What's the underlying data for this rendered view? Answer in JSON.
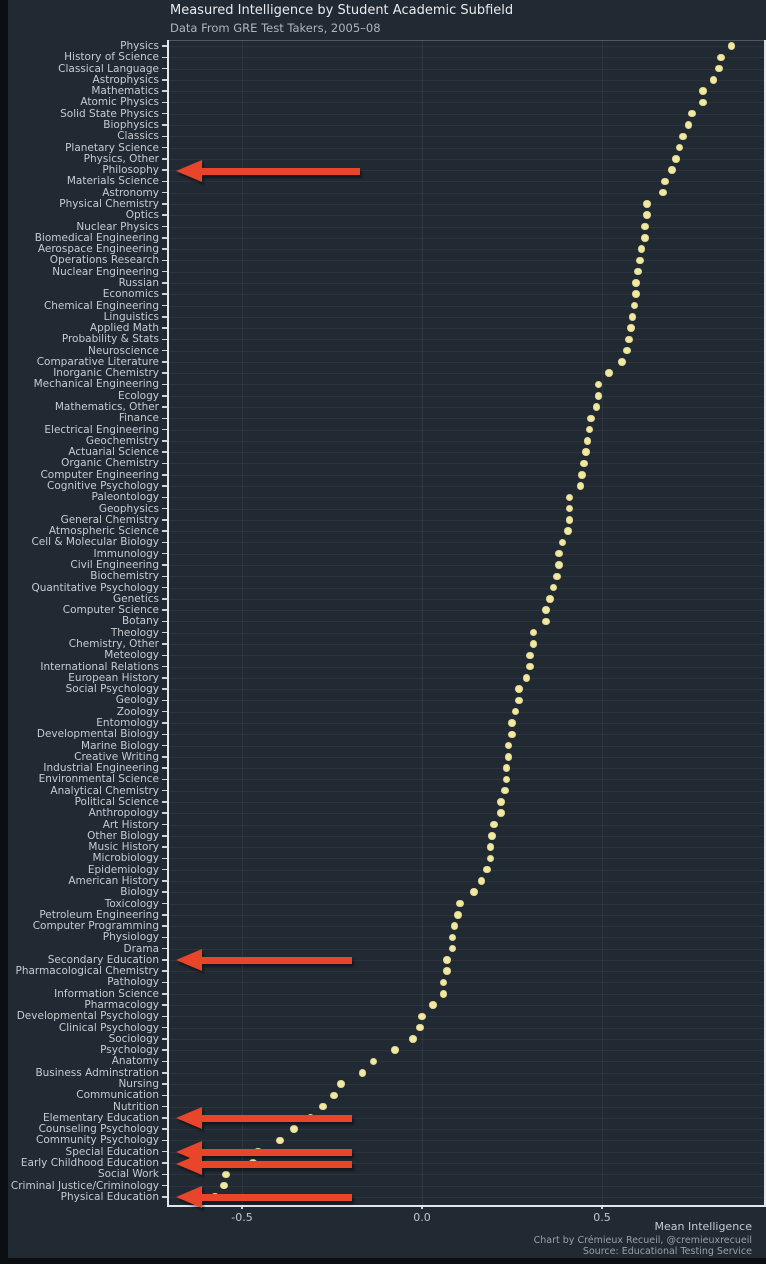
{
  "title": "Measured Intelligence by Student Academic Subfield",
  "subtitle": "Data From GRE Test Takers, 2005–08",
  "footer": {
    "xlabel": "Mean Intelligence",
    "credit": "Chart by Crémieux Recueil, @cremieuxrecueil",
    "source": "Source: Educational Testing Service"
  },
  "colors": {
    "background": "#212932",
    "dot": "#f2e9a0",
    "arrow": "#e8452b",
    "label_text": "#c7ccd1",
    "title_text": "#e9ebee",
    "axis": "#e3e7ea"
  },
  "chart_data": {
    "type": "scatter",
    "title": "Measured Intelligence by Student Academic Subfield",
    "subtitle": "Data From GRE Test Takers, 2005–08",
    "xlabel": "Mean Intelligence",
    "ylabel": "",
    "xlim": [
      -0.71,
      0.95
    ],
    "xticks": [
      -0.5,
      0.0,
      0.5
    ],
    "grid": true,
    "legend": false,
    "categories": [
      "Physics",
      "History of Science",
      "Classical Language",
      "Astrophysics",
      "Mathematics",
      "Atomic Physics",
      "Solid State Physics",
      "Biophysics",
      "Classics",
      "Planetary Science",
      "Physics, Other",
      "Philosophy",
      "Materials Science",
      "Astronomy",
      "Physical Chemistry",
      "Optics",
      "Nuclear Physics",
      "Biomedical Engineering",
      "Aerospace Engineering",
      "Operations Research",
      "Nuclear Engineering",
      "Russian",
      "Economics",
      "Chemical Engineering",
      "Linguistics",
      "Applied Math",
      "Probability & Stats",
      "Neuroscience",
      "Comparative Literature",
      "Inorganic Chemistry",
      "Mechanical Engineering",
      "Ecology",
      "Mathematics, Other",
      "Finance",
      "Electrical Engineering",
      "Geochemistry",
      "Actuarial Science",
      "Organic Chemistry",
      "Computer Engineering",
      "Cognitive Psychology",
      "Paleontology",
      "Geophysics",
      "General Chemistry",
      "Atmospheric Science",
      "Cell & Molecular Biology",
      "Immunology",
      "Civil Engineering",
      "Biochemistry",
      "Quantitative Psychology",
      "Genetics",
      "Computer Science",
      "Botany",
      "Theology",
      "Chemistry, Other",
      "Meteology",
      "International Relations",
      "European History",
      "Social Psychology",
      "Geology",
      "Zoology",
      "Entomology",
      "Developmental Biology",
      "Marine Biology",
      "Creative Writing",
      "Industrial Engineering",
      "Environmental Science",
      "Analytical Chemistry",
      "Political Science",
      "Anthropology",
      "Art History",
      "Other Biology",
      "Music History",
      "Microbiology",
      "Epidemiology",
      "American History",
      "Biology",
      "Toxicology",
      "Petroleum Engineering",
      "Computer Programming",
      "Physiology",
      "Drama",
      "Secondary Education",
      "Pharmacological Chemistry",
      "Pathology",
      "Information Science",
      "Pharmacology",
      "Developmental Psychology",
      "Clinical Psychology",
      "Sociology",
      "Psychology",
      "Anatomy",
      "Business Adminstration",
      "Nursing",
      "Communication",
      "Nutrition",
      "Elementary Education",
      "Counseling Psychology",
      "Community Psychology",
      "Special Education",
      "Early Childhood Education",
      "Social Work",
      "Criminal Justice/Criminology",
      "Physical Education"
    ],
    "values": [
      0.86,
      0.83,
      0.825,
      0.81,
      0.78,
      0.78,
      0.75,
      0.74,
      0.725,
      0.715,
      0.705,
      0.695,
      0.675,
      0.67,
      0.625,
      0.625,
      0.62,
      0.62,
      0.61,
      0.605,
      0.6,
      0.595,
      0.595,
      0.59,
      0.585,
      0.58,
      0.575,
      0.57,
      0.555,
      0.52,
      0.49,
      0.49,
      0.485,
      0.47,
      0.465,
      0.46,
      0.455,
      0.45,
      0.445,
      0.44,
      0.41,
      0.41,
      0.41,
      0.405,
      0.39,
      0.38,
      0.38,
      0.375,
      0.365,
      0.355,
      0.345,
      0.345,
      0.31,
      0.31,
      0.3,
      0.3,
      0.29,
      0.27,
      0.27,
      0.26,
      0.25,
      0.25,
      0.24,
      0.24,
      0.235,
      0.235,
      0.23,
      0.22,
      0.22,
      0.2,
      0.195,
      0.19,
      0.19,
      0.18,
      0.165,
      0.145,
      0.105,
      0.1,
      0.09,
      0.085,
      0.085,
      0.07,
      0.07,
      0.06,
      0.06,
      0.03,
      0.0,
      -0.005,
      -0.025,
      -0.075,
      -0.135,
      -0.165,
      -0.225,
      -0.245,
      -0.275,
      -0.31,
      -0.355,
      -0.395,
      -0.455,
      -0.47,
      -0.545,
      -0.55,
      -0.575
    ],
    "annotation_arrows": [
      {
        "target": "Philosophy"
      },
      {
        "target": "Secondary Education"
      },
      {
        "target": "Elementary Education"
      },
      {
        "target": "Special Education"
      },
      {
        "target": "Early Childhood Education"
      },
      {
        "target": "Physical Education"
      }
    ]
  }
}
